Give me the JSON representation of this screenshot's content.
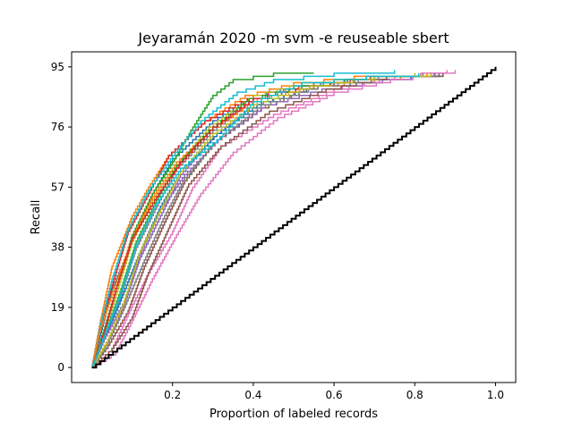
{
  "chart_data": {
    "type": "line",
    "title": "Jeyaramán 2020 -m svm -e reuseable sbert",
    "xlabel": "Proportion of labeled records",
    "ylabel": "Recall",
    "xlim": [
      -0.05,
      1.05
    ],
    "ylim": [
      -4.75,
      99.75
    ],
    "xticks": [
      0.2,
      0.4,
      0.6,
      0.8,
      1.0
    ],
    "xtick_labels": [
      "0.2",
      "0.4",
      "0.6",
      "0.8",
      "1.0"
    ],
    "yticks": [
      0,
      19,
      38,
      57,
      76,
      95
    ],
    "ytick_labels": [
      "0",
      "19",
      "38",
      "57",
      "76",
      "95"
    ],
    "grid": false,
    "legend": "none",
    "run_colors": [
      "#1f77b4",
      "#ff7f0e",
      "#2ca02c",
      "#d62728",
      "#9467bd",
      "#8c564b",
      "#e377c2",
      "#7f7f7f",
      "#bcbd22",
      "#17becf"
    ],
    "series": [
      {
        "color": "#1f77b4",
        "x": [
          0,
          0.02,
          0.05,
          0.1,
          0.15,
          0.2,
          0.3,
          0.4,
          0.5,
          0.7,
          0.84
        ],
        "y": [
          0,
          10,
          25,
          40,
          55,
          66,
          78,
          86,
          89,
          92,
          93
        ]
      },
      {
        "color": "#ff7f0e",
        "x": [
          0,
          0.02,
          0.05,
          0.1,
          0.14,
          0.19,
          0.28,
          0.38,
          0.5,
          0.65,
          0.8
        ],
        "y": [
          0,
          14,
          32,
          48,
          57,
          67,
          78,
          86,
          90,
          92,
          93
        ]
      },
      {
        "color": "#2ca02c",
        "x": [
          0,
          0.03,
          0.06,
          0.1,
          0.15,
          0.2,
          0.25,
          0.3,
          0.35,
          0.45,
          0.55
        ],
        "y": [
          0,
          12,
          25,
          42,
          55,
          65,
          76,
          86,
          91,
          93,
          93
        ]
      },
      {
        "color": "#d62728",
        "x": [
          0,
          0.02,
          0.05,
          0.09,
          0.14,
          0.19,
          0.28,
          0.4,
          0.55,
          0.7,
          0.85
        ],
        "y": [
          0,
          12,
          26,
          43,
          55,
          67,
          78,
          86,
          90,
          92,
          93
        ]
      },
      {
        "color": "#9467bd",
        "x": [
          0,
          0.04,
          0.08,
          0.12,
          0.17,
          0.22,
          0.3,
          0.4,
          0.55,
          0.7,
          0.85
        ],
        "y": [
          0,
          8,
          20,
          35,
          48,
          61,
          73,
          83,
          89,
          92,
          93
        ]
      },
      {
        "color": "#8c564b",
        "x": [
          0,
          0.04,
          0.09,
          0.13,
          0.18,
          0.23,
          0.3,
          0.42,
          0.55,
          0.7,
          0.86
        ],
        "y": [
          0,
          7,
          18,
          32,
          46,
          59,
          71,
          82,
          89,
          92,
          93
        ]
      },
      {
        "color": "#e377c2",
        "x": [
          0,
          0.05,
          0.09,
          0.14,
          0.2,
          0.25,
          0.32,
          0.45,
          0.6,
          0.75,
          0.88
        ],
        "y": [
          0,
          6,
          17,
          30,
          43,
          57,
          70,
          80,
          88,
          92,
          94
        ]
      },
      {
        "color": "#7f7f7f",
        "x": [
          0,
          0.03,
          0.07,
          0.11,
          0.16,
          0.21,
          0.3,
          0.4,
          0.55,
          0.7,
          0.82
        ],
        "y": [
          0,
          10,
          22,
          38,
          51,
          63,
          75,
          85,
          90,
          92,
          93
        ]
      },
      {
        "color": "#bcbd22",
        "x": [
          0,
          0.03,
          0.06,
          0.1,
          0.15,
          0.21,
          0.29,
          0.4,
          0.52,
          0.68,
          0.8
        ],
        "y": [
          0,
          11,
          23,
          40,
          53,
          64,
          76,
          86,
          90,
          92,
          93
        ]
      },
      {
        "color": "#17becf",
        "x": [
          0,
          0.02,
          0.05,
          0.09,
          0.14,
          0.2,
          0.27,
          0.36,
          0.45,
          0.6,
          0.75
        ],
        "y": [
          0,
          13,
          28,
          44,
          56,
          67,
          78,
          87,
          91,
          93,
          94
        ]
      },
      {
        "color": "#1f77b4",
        "x": [
          0,
          0.03,
          0.07,
          0.12,
          0.17,
          0.22,
          0.31,
          0.42,
          0.56,
          0.72,
          0.86
        ],
        "y": [
          0,
          9,
          21,
          37,
          51,
          62,
          74,
          84,
          89,
          91,
          93
        ]
      },
      {
        "color": "#ff7f0e",
        "x": [
          0,
          0.02,
          0.06,
          0.1,
          0.15,
          0.21,
          0.3,
          0.41,
          0.55,
          0.7,
          0.83
        ],
        "y": [
          0,
          12,
          27,
          41,
          54,
          65,
          76,
          85,
          89,
          91,
          93
        ]
      },
      {
        "color": "#2ca02c",
        "x": [
          0,
          0.03,
          0.07,
          0.11,
          0.16,
          0.21,
          0.29,
          0.39,
          0.52,
          0.68,
          0.84
        ],
        "y": [
          0,
          10,
          24,
          40,
          53,
          64,
          75,
          85,
          89,
          92,
          93
        ]
      },
      {
        "color": "#d62728",
        "x": [
          0,
          0.03,
          0.06,
          0.1,
          0.16,
          0.22,
          0.3,
          0.4,
          0.54,
          0.69,
          0.84
        ],
        "y": [
          0,
          11,
          25,
          41,
          54,
          65,
          76,
          85,
          89,
          92,
          93
        ]
      },
      {
        "color": "#9467bd",
        "x": [
          0,
          0.03,
          0.08,
          0.12,
          0.17,
          0.23,
          0.32,
          0.43,
          0.57,
          0.72,
          0.87
        ],
        "y": [
          0,
          9,
          21,
          36,
          50,
          61,
          73,
          83,
          88,
          91,
          93
        ]
      },
      {
        "color": "#8c564b",
        "x": [
          0,
          0.05,
          0.1,
          0.14,
          0.19,
          0.24,
          0.32,
          0.44,
          0.58,
          0.73,
          0.87
        ],
        "y": [
          0,
          6,
          16,
          30,
          44,
          58,
          70,
          81,
          88,
          92,
          93
        ]
      },
      {
        "color": "#e377c2",
        "x": [
          0,
          0.06,
          0.1,
          0.15,
          0.21,
          0.27,
          0.35,
          0.46,
          0.6,
          0.74,
          0.9
        ],
        "y": [
          0,
          5,
          15,
          28,
          42,
          55,
          68,
          79,
          87,
          91,
          94
        ]
      },
      {
        "color": "#7f7f7f",
        "x": [
          0,
          0.04,
          0.08,
          0.13,
          0.18,
          0.23,
          0.31,
          0.42,
          0.56,
          0.71,
          0.85
        ],
        "y": [
          0,
          8,
          19,
          34,
          48,
          60,
          72,
          83,
          89,
          92,
          93
        ]
      },
      {
        "color": "#bcbd22",
        "x": [
          0,
          0.04,
          0.08,
          0.12,
          0.17,
          0.22,
          0.3,
          0.41,
          0.54,
          0.7,
          0.84
        ],
        "y": [
          0,
          9,
          21,
          37,
          50,
          62,
          74,
          84,
          89,
          92,
          93
        ]
      },
      {
        "color": "#17becf",
        "x": [
          0,
          0.03,
          0.07,
          0.11,
          0.16,
          0.22,
          0.31,
          0.4,
          0.52,
          0.68,
          0.81
        ],
        "y": [
          0,
          10,
          23,
          39,
          52,
          63,
          72,
          84,
          90,
          92,
          93
        ]
      }
    ],
    "baseline": {
      "color": "#000000",
      "x": [
        0,
        1.0
      ],
      "y": [
        0,
        95
      ]
    }
  }
}
